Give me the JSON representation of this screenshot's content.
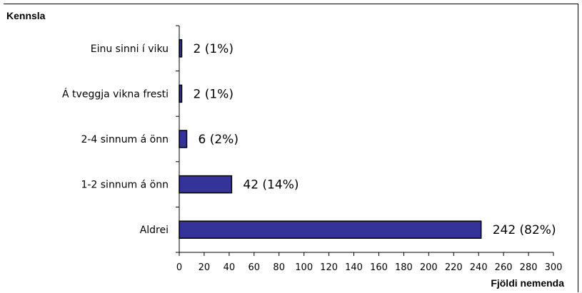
{
  "chart_data": {
    "type": "bar",
    "orientation": "horizontal",
    "title": "Kennsla",
    "xlabel": "Fjöldi nemenda",
    "ylabel": "",
    "categories": [
      "Einu sinni í viku",
      "Á tveggja vikna fresti",
      "2-4 sinnum á önn",
      "1-2 sinnum á önn",
      "Aldrei"
    ],
    "values": [
      2,
      2,
      6,
      42,
      242
    ],
    "data_labels": [
      "2 (1%)",
      "2 (1%)",
      "6 (2%)",
      "42 (14%)",
      "242 (82%)"
    ],
    "xlim": [
      0,
      300
    ],
    "xticks": [
      0,
      20,
      40,
      60,
      80,
      100,
      120,
      140,
      160,
      180,
      200,
      220,
      240,
      260,
      280,
      300
    ],
    "grid": false,
    "legend": "none",
    "colors": {
      "bar_fill": "#33339a",
      "bar_stroke": "#000000"
    }
  }
}
